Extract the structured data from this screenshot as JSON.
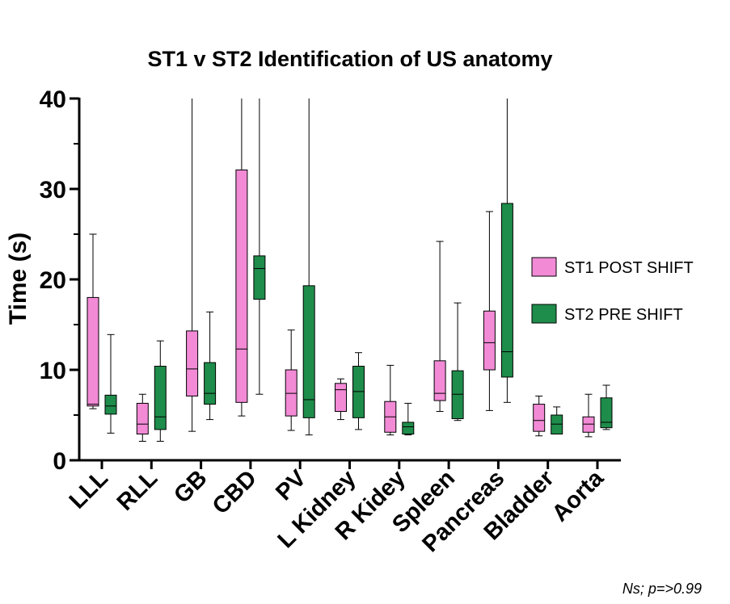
{
  "chart_data": {
    "type": "box",
    "title": "ST1 v ST2 Identification of US anatomy",
    "ylabel": "Time (s)",
    "xlabel": "",
    "ylim": [
      0,
      40
    ],
    "yticks": [
      0,
      10,
      20,
      30,
      40
    ],
    "categories": [
      "LLL",
      "RLL",
      "GB",
      "CBD",
      "PV",
      "L Kidney",
      "R Kidey",
      "Spleen",
      "Pancreas",
      "Bladder",
      "Aorta"
    ],
    "legend_position": "right",
    "grid": false,
    "series": [
      {
        "name": "ST1 POST SHIFT",
        "color": "#F28AD6",
        "boxes": [
          {
            "min": 5.7,
            "q1": 6.0,
            "median": 6.2,
            "q3": 18.0,
            "max": 25.0
          },
          {
            "min": 2.1,
            "q1": 2.9,
            "median": 4.0,
            "q3": 6.3,
            "max": 7.3
          },
          {
            "min": 3.2,
            "q1": 7.1,
            "median": 10.1,
            "q3": 14.3,
            "max": 40.0
          },
          {
            "min": 4.9,
            "q1": 6.4,
            "median": 12.3,
            "q3": 32.1,
            "max": 40.0
          },
          {
            "min": 3.3,
            "q1": 4.9,
            "median": 7.4,
            "q3": 10.0,
            "max": 14.4
          },
          {
            "min": 4.5,
            "q1": 5.4,
            "median": 7.8,
            "q3": 8.5,
            "max": 9.0
          },
          {
            "min": 2.8,
            "q1": 3.1,
            "median": 4.8,
            "q3": 6.5,
            "max": 10.5
          },
          {
            "min": 5.4,
            "q1": 6.6,
            "median": 7.4,
            "q3": 11.0,
            "max": 24.2
          },
          {
            "min": 5.5,
            "q1": 10.0,
            "median": 13.0,
            "q3": 16.5,
            "max": 27.5
          },
          {
            "min": 2.7,
            "q1": 3.2,
            "median": 4.4,
            "q3": 6.2,
            "max": 7.1
          },
          {
            "min": 2.6,
            "q1": 3.1,
            "median": 4.0,
            "q3": 4.8,
            "max": 7.3
          }
        ]
      },
      {
        "name": "ST2 PRE SHIFT",
        "color": "#1E8C4A",
        "boxes": [
          {
            "min": 3.0,
            "q1": 5.1,
            "median": 6.0,
            "q3": 7.2,
            "max": 13.9
          },
          {
            "min": 2.1,
            "q1": 3.4,
            "median": 4.8,
            "q3": 10.4,
            "max": 13.2
          },
          {
            "min": 4.5,
            "q1": 6.2,
            "median": 7.4,
            "q3": 10.8,
            "max": 16.4
          },
          {
            "min": 7.3,
            "q1": 17.8,
            "median": 21.2,
            "q3": 22.6,
            "max": 40.0
          },
          {
            "min": 2.8,
            "q1": 4.7,
            "median": 6.7,
            "q3": 19.3,
            "max": 40.0
          },
          {
            "min": 3.4,
            "q1": 4.7,
            "median": 7.6,
            "q3": 10.4,
            "max": 11.9
          },
          {
            "min": 2.8,
            "q1": 2.9,
            "median": 3.7,
            "q3": 4.2,
            "max": 6.3
          },
          {
            "min": 4.4,
            "q1": 4.6,
            "median": 7.3,
            "q3": 9.9,
            "max": 17.4
          },
          {
            "min": 6.4,
            "q1": 9.2,
            "median": 12.0,
            "q3": 28.4,
            "max": 40.0
          },
          {
            "min": 2.9,
            "q1": 2.9,
            "median": 4.0,
            "q3": 5.0,
            "max": 5.9
          },
          {
            "min": 3.4,
            "q1": 3.6,
            "median": 4.2,
            "q3": 6.9,
            "max": 8.3
          }
        ]
      }
    ],
    "annotation": "Ns; p=>0.99"
  }
}
